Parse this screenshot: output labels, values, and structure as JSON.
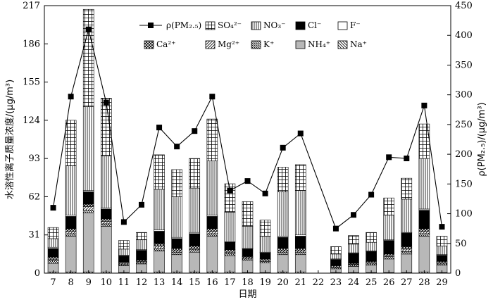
{
  "chart_data": {
    "type": "bar",
    "subtype": "stacked bar with line overlay on secondary axis",
    "xlabel": "日期",
    "ylabel_left": "水溶性离子质量浓度/(μg/m³)",
    "ylabel_right": "ρ(PM₂.₅)/(μg/m³)",
    "categories": [
      "7",
      "8",
      "9",
      "10",
      "11",
      "12",
      "13",
      "14",
      "15",
      "16",
      "17",
      "18",
      "19",
      "20",
      "21",
      "22",
      "23",
      "24",
      "25",
      "26",
      "27",
      "28",
      "29"
    ],
    "left_ylim": [
      0,
      217
    ],
    "left_yticks": [
      0,
      31,
      62,
      93,
      124,
      155,
      186,
      217
    ],
    "right_ylim": [
      0,
      450
    ],
    "right_yticks": [
      0,
      50,
      100,
      150,
      200,
      250,
      300,
      350,
      400,
      450
    ],
    "grid": false,
    "legend_position": "top-right, inside plot",
    "stack_series": [
      {
        "name": "Na⁺",
        "pattern": "backslash-hatch",
        "values": [
          1,
          1,
          1,
          1,
          0.5,
          0.5,
          1,
          1,
          1,
          1,
          1,
          0.5,
          0.5,
          1,
          1,
          0,
          0.5,
          0.5,
          0.5,
          0.5,
          0.5,
          1,
          0.5
        ]
      },
      {
        "name": "NH₄⁺",
        "pattern": "gray-fill",
        "values": [
          7,
          29,
          48,
          37,
          5.5,
          7,
          17,
          14,
          16,
          29,
          13,
          10,
          8,
          14,
          14,
          0,
          3,
          5,
          6,
          11,
          15,
          29,
          6
        ]
      },
      {
        "name": "K⁺",
        "pattern": "cross-backslash",
        "values": [
          2,
          2,
          2,
          2,
          1,
          1,
          2,
          2,
          2,
          2,
          2,
          1,
          1,
          2,
          2,
          0,
          1,
          1,
          1,
          2,
          2,
          2,
          1
        ]
      },
      {
        "name": "Mg²⁺",
        "pattern": "slash-hatch",
        "values": [
          1,
          2,
          3,
          2,
          1,
          1,
          2,
          1,
          1,
          2,
          1,
          1,
          1,
          1,
          1,
          0,
          0.5,
          0.5,
          1,
          1,
          2,
          2,
          1
        ]
      },
      {
        "name": "Ca²⁺",
        "pattern": "crosshatch",
        "values": [
          2,
          2,
          2,
          2,
          1,
          1,
          2,
          2,
          2,
          2,
          2,
          1,
          1,
          2,
          2,
          0,
          1,
          1,
          1,
          1,
          2,
          2,
          1
        ]
      },
      {
        "name": "Cl⁻",
        "pattern": "black-fill",
        "values": [
          7,
          10,
          10,
          8,
          5,
          8,
          10,
          8,
          10,
          10,
          6,
          6,
          5,
          9,
          10,
          0,
          5,
          8,
          8,
          11,
          11,
          15,
          5
        ]
      },
      {
        "name": "F⁻",
        "pattern": "white-fill",
        "values": [
          1,
          1,
          1,
          1,
          0.5,
          0.5,
          1,
          1,
          1,
          1,
          0.5,
          0.5,
          0.5,
          1,
          1,
          0,
          0.5,
          0.5,
          0.5,
          0.5,
          0.5,
          1,
          0.5
        ]
      },
      {
        "name": "NO₃⁻",
        "pattern": "vertical-lines",
        "values": [
          7,
          40,
          68,
          42,
          5,
          8,
          33,
          33,
          36,
          44,
          24,
          18,
          13,
          36,
          36,
          0,
          4,
          7,
          7,
          20,
          27,
          41,
          7
        ]
      },
      {
        "name": "SO₄²⁻",
        "pattern": "grid-hatch",
        "values": [
          9,
          37,
          79,
          47,
          7,
          6,
          28,
          22,
          24,
          34,
          23,
          20,
          13,
          20,
          21,
          0,
          6,
          7,
          8,
          14,
          17,
          28,
          8
        ]
      }
    ],
    "line_series": {
      "name": "ρ(PM₂.₅)",
      "axis": "right",
      "marker": "square",
      "values": [
        110,
        297,
        410,
        287,
        86,
        115,
        245,
        213,
        239,
        297,
        139,
        155,
        134,
        211,
        235,
        null,
        75,
        98,
        132,
        195,
        193,
        282,
        78
      ]
    },
    "legend": {
      "row1": [
        "ρ(PM₂.₅)",
        "SO₄²⁻",
        "NO₃⁻",
        "Cl⁻",
        "F⁻"
      ],
      "row2": [
        "Ca²⁺",
        "Mg²⁺",
        "K⁺",
        "NH₄⁺",
        "Na⁺"
      ]
    }
  }
}
